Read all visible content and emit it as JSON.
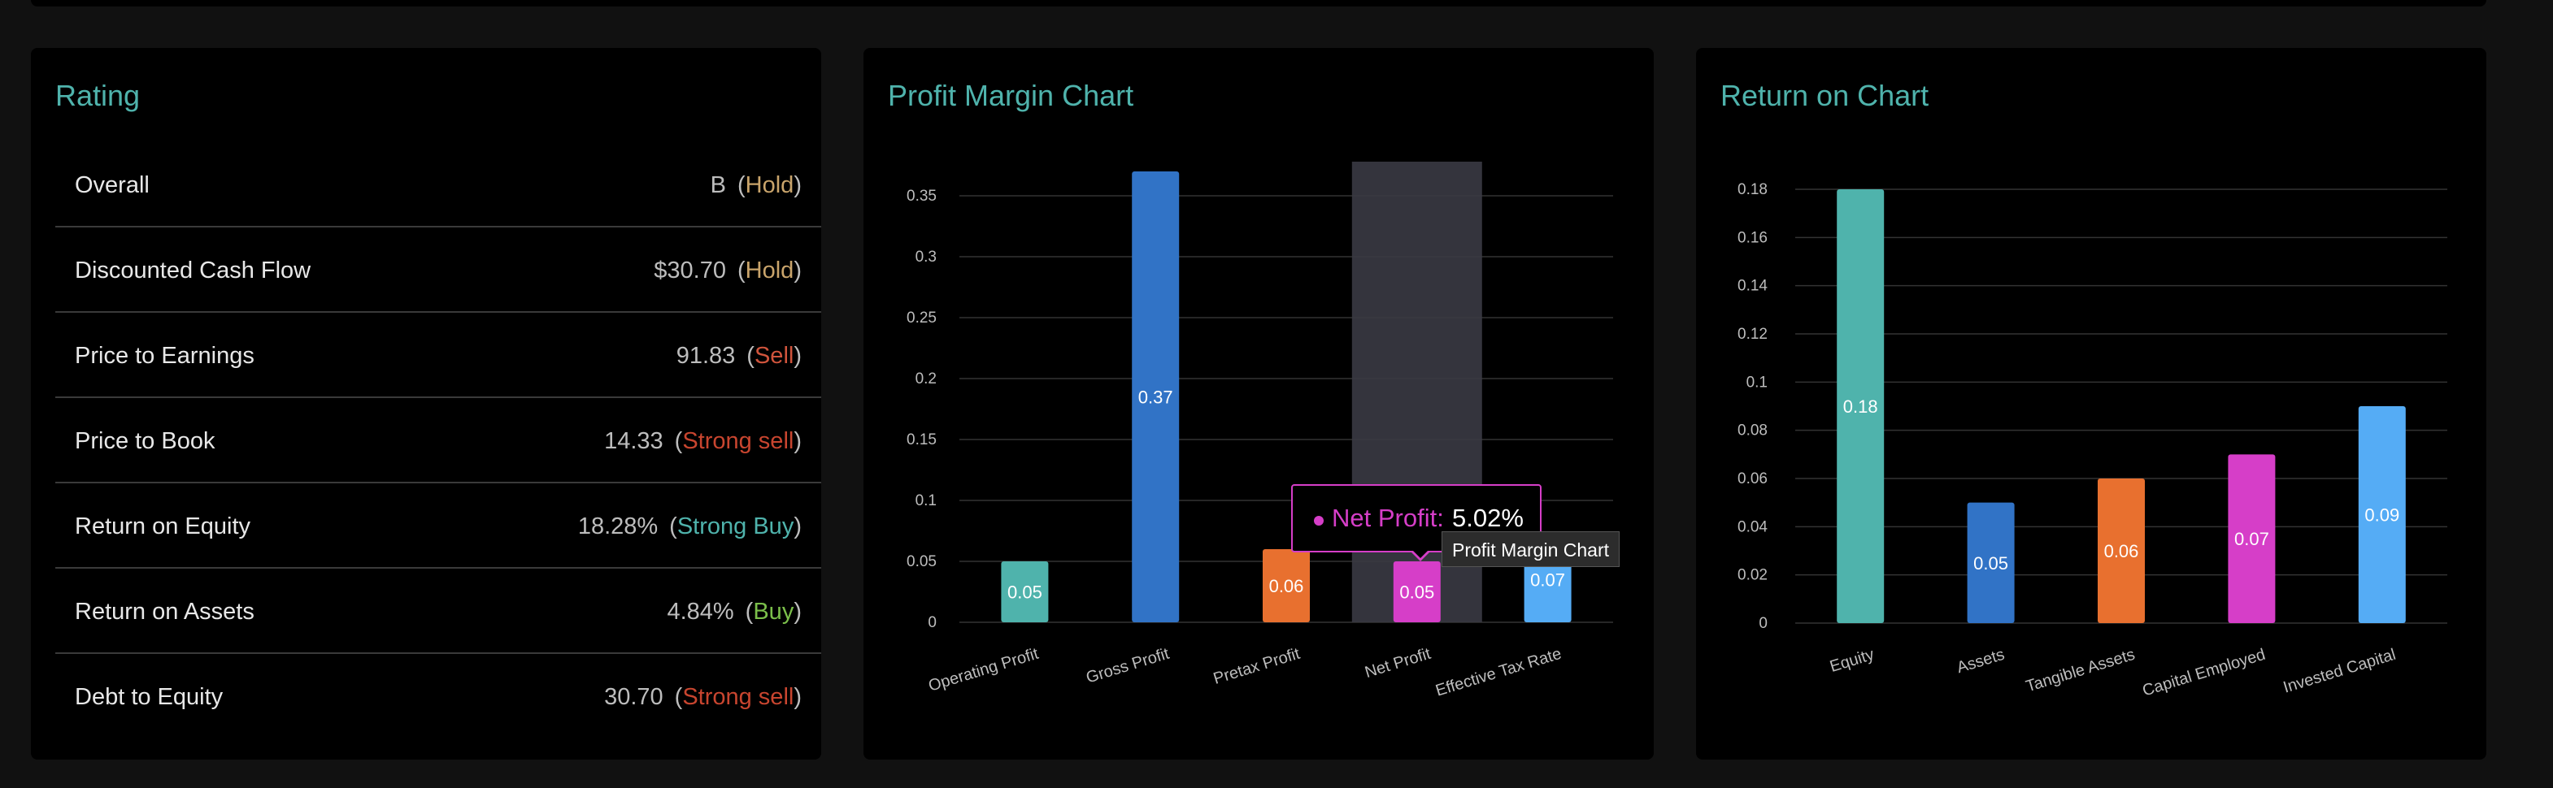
{
  "rating": {
    "title": "Rating",
    "rows": [
      {
        "label": "Overall",
        "value": "B",
        "recommendation": "Hold",
        "color": "#c9a46b"
      },
      {
        "label": "Discounted Cash Flow",
        "value": "$30.70",
        "recommendation": "Hold",
        "color": "#c9a46b"
      },
      {
        "label": "Price to Earnings",
        "value": "91.83",
        "recommendation": "Sell",
        "color": "#d0543c"
      },
      {
        "label": "Price to Book",
        "value": "14.33",
        "recommendation": "Strong sell",
        "color": "#c8452f"
      },
      {
        "label": "Return on Equity",
        "value": "18.28%",
        "recommendation": "Strong Buy",
        "color": "#4fb3ac"
      },
      {
        "label": "Return on Assets",
        "value": "4.84%",
        "recommendation": "Buy",
        "color": "#7bbf4a"
      },
      {
        "label": "Debt to Equity",
        "value": "30.70",
        "recommendation": "Strong sell",
        "color": "#c8452f"
      }
    ]
  },
  "tooltip": {
    "label": "Net Profit:",
    "value": "5.02%",
    "chart_name": "Profit Margin Chart"
  },
  "chart_data": [
    {
      "type": "bar",
      "title": "Profit Margin Chart",
      "categories": [
        "Operating Profit",
        "Gross Profit",
        "Pretax Profit",
        "Net Profit",
        "Effective Tax Rate"
      ],
      "values": [
        0.05,
        0.37,
        0.06,
        0.05,
        0.07
      ],
      "data_labels": [
        "0.05",
        "0.37",
        "0.06",
        "0.05",
        "0.07"
      ],
      "colors": [
        "#4fb3ac",
        "#3173c6",
        "#e8702f",
        "#d63ec8",
        "#55acf5"
      ],
      "yticks": [
        "0",
        "0.05",
        "0.1",
        "0.15",
        "0.2",
        "0.25",
        "0.3",
        "0.35"
      ],
      "ylim": [
        0,
        0.39
      ],
      "highlighted_category": "Net Profit",
      "grid": true,
      "xlabel": "",
      "ylabel": ""
    },
    {
      "type": "bar",
      "title": "Return on Chart",
      "categories": [
        "Equity",
        "Assets",
        "Tangible Assets",
        "Capital Employed",
        "Invested Capital"
      ],
      "values": [
        0.18,
        0.05,
        0.06,
        0.07,
        0.09
      ],
      "data_labels": [
        "0.18",
        "0.05",
        "0.06",
        "0.07",
        "0.09"
      ],
      "colors": [
        "#4fb3ac",
        "#3173c6",
        "#e8702f",
        "#d63ec8",
        "#55acf5"
      ],
      "yticks": [
        "0",
        "0.02",
        "0.04",
        "0.06",
        "0.08",
        "0.1",
        "0.12",
        "0.14",
        "0.16",
        "0.18"
      ],
      "ylim": [
        0,
        0.18
      ],
      "grid": true,
      "xlabel": "",
      "ylabel": ""
    }
  ]
}
